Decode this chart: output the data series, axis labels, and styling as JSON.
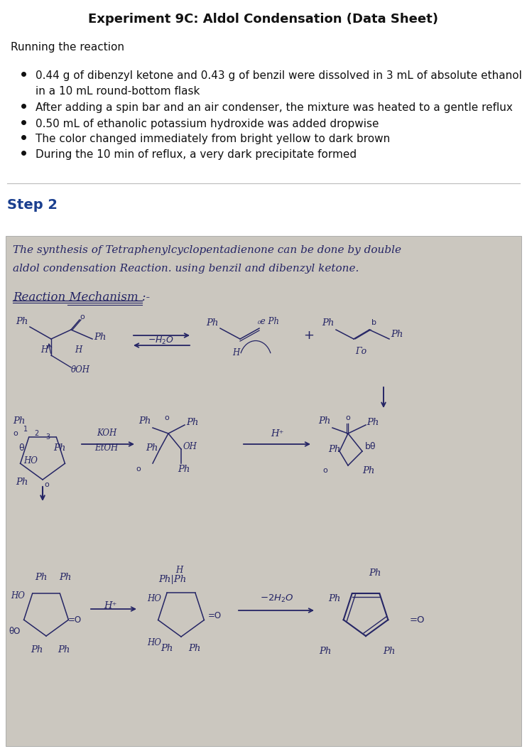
{
  "title": "Experiment 9C: Aldol Condensation (Data Sheet)",
  "section1_header": "Running the reaction",
  "bullet1a": "0.44 g of dibenzyl ketone and 0.43 g of benzil were dissolved in 3 mL of absolute ethanol",
  "bullet1b": "in a 10 mL round-bottom flask",
  "bullet2": "After adding a spin bar and an air condenser, the mixture was heated to a gentle reflux",
  "bullet3": "0.50 mL of ethanolic potassium hydroxide was added dropwise",
  "bullet4": "The color changed immediately from bright yellow to dark brown",
  "bullet5": "During the 10 min of reflux, a very dark precipitate formed",
  "step2_label": "Step 2",
  "step2_color": "#1a3f8f",
  "handwritten_bg": "#cbc7bf",
  "hw_color": "#252565",
  "page_bg": "#ffffff",
  "text_color": "#111111",
  "title_fontsize": 13,
  "body_fontsize": 11,
  "step2_fontsize": 14,
  "photo_line1": "The synthesis of Tetraphenylcyclopentadienone can be done by double",
  "photo_line2": "aldol condensation Reaction. using benzil and dibenzyl ketone.",
  "mechanism_label": "Reaction Mechanism :-"
}
